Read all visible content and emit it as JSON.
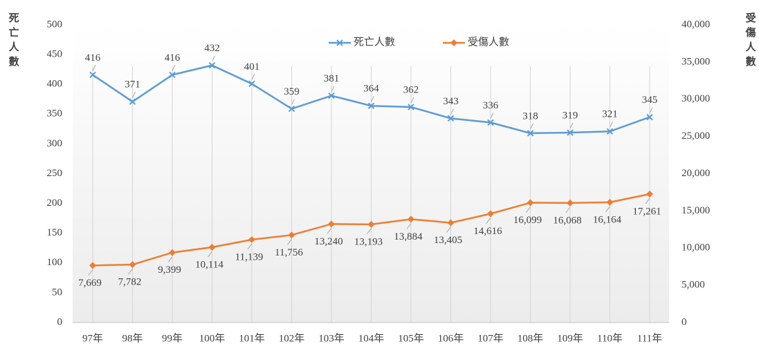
{
  "chart_data": {
    "type": "line",
    "ylabel": "死亡人數",
    "y2label": "受傷人數",
    "categories": [
      "97年",
      "98年",
      "99年",
      "100年",
      "101年",
      "102年",
      "103年",
      "104年",
      "105年",
      "106年",
      "107年",
      "108年",
      "109年",
      "110年",
      "111年"
    ],
    "series": [
      {
        "name": "死亡人數",
        "color": "#5b9bd5",
        "marker": "x",
        "axis": "y",
        "values": [
          416,
          371,
          416,
          432,
          401,
          359,
          381,
          364,
          362,
          343,
          336,
          318,
          319,
          321,
          345
        ]
      },
      {
        "name": "受傷人數",
        "color": "#ed7d31",
        "marker": "diamond",
        "axis": "y2",
        "values": [
          7669,
          7782,
          9399,
          10114,
          11139,
          11756,
          13240,
          13193,
          13884,
          13405,
          14616,
          16099,
          16068,
          16164,
          17261
        ],
        "value_labels": [
          "7,669",
          "7,782",
          "9,399",
          "10,114",
          "11,139",
          "11,756",
          "13,240",
          "13,193",
          "13,884",
          "13,405",
          "14,616",
          "16,099",
          "16,068",
          "16,164",
          "17,261"
        ]
      }
    ],
    "ylim": [
      0,
      500
    ],
    "yticks": [
      0,
      50,
      100,
      150,
      200,
      250,
      300,
      350,
      400,
      450,
      500
    ],
    "y2lim": [
      0,
      40000
    ],
    "y2ticks": [
      0,
      {
        "value": 5000,
        "label": "5,000"
      },
      {
        "value": 10000,
        "label": "10,000"
      },
      {
        "value": 15000,
        "label": "15,000"
      },
      {
        "value": 20000,
        "label": "20,000"
      },
      {
        "value": 25000,
        "label": "25,000"
      },
      {
        "value": 30000,
        "label": "30,000"
      },
      {
        "value": 35000,
        "label": "35,000"
      },
      {
        "value": 40000,
        "label": "40,000"
      }
    ],
    "grid": "x",
    "legend": "top"
  }
}
